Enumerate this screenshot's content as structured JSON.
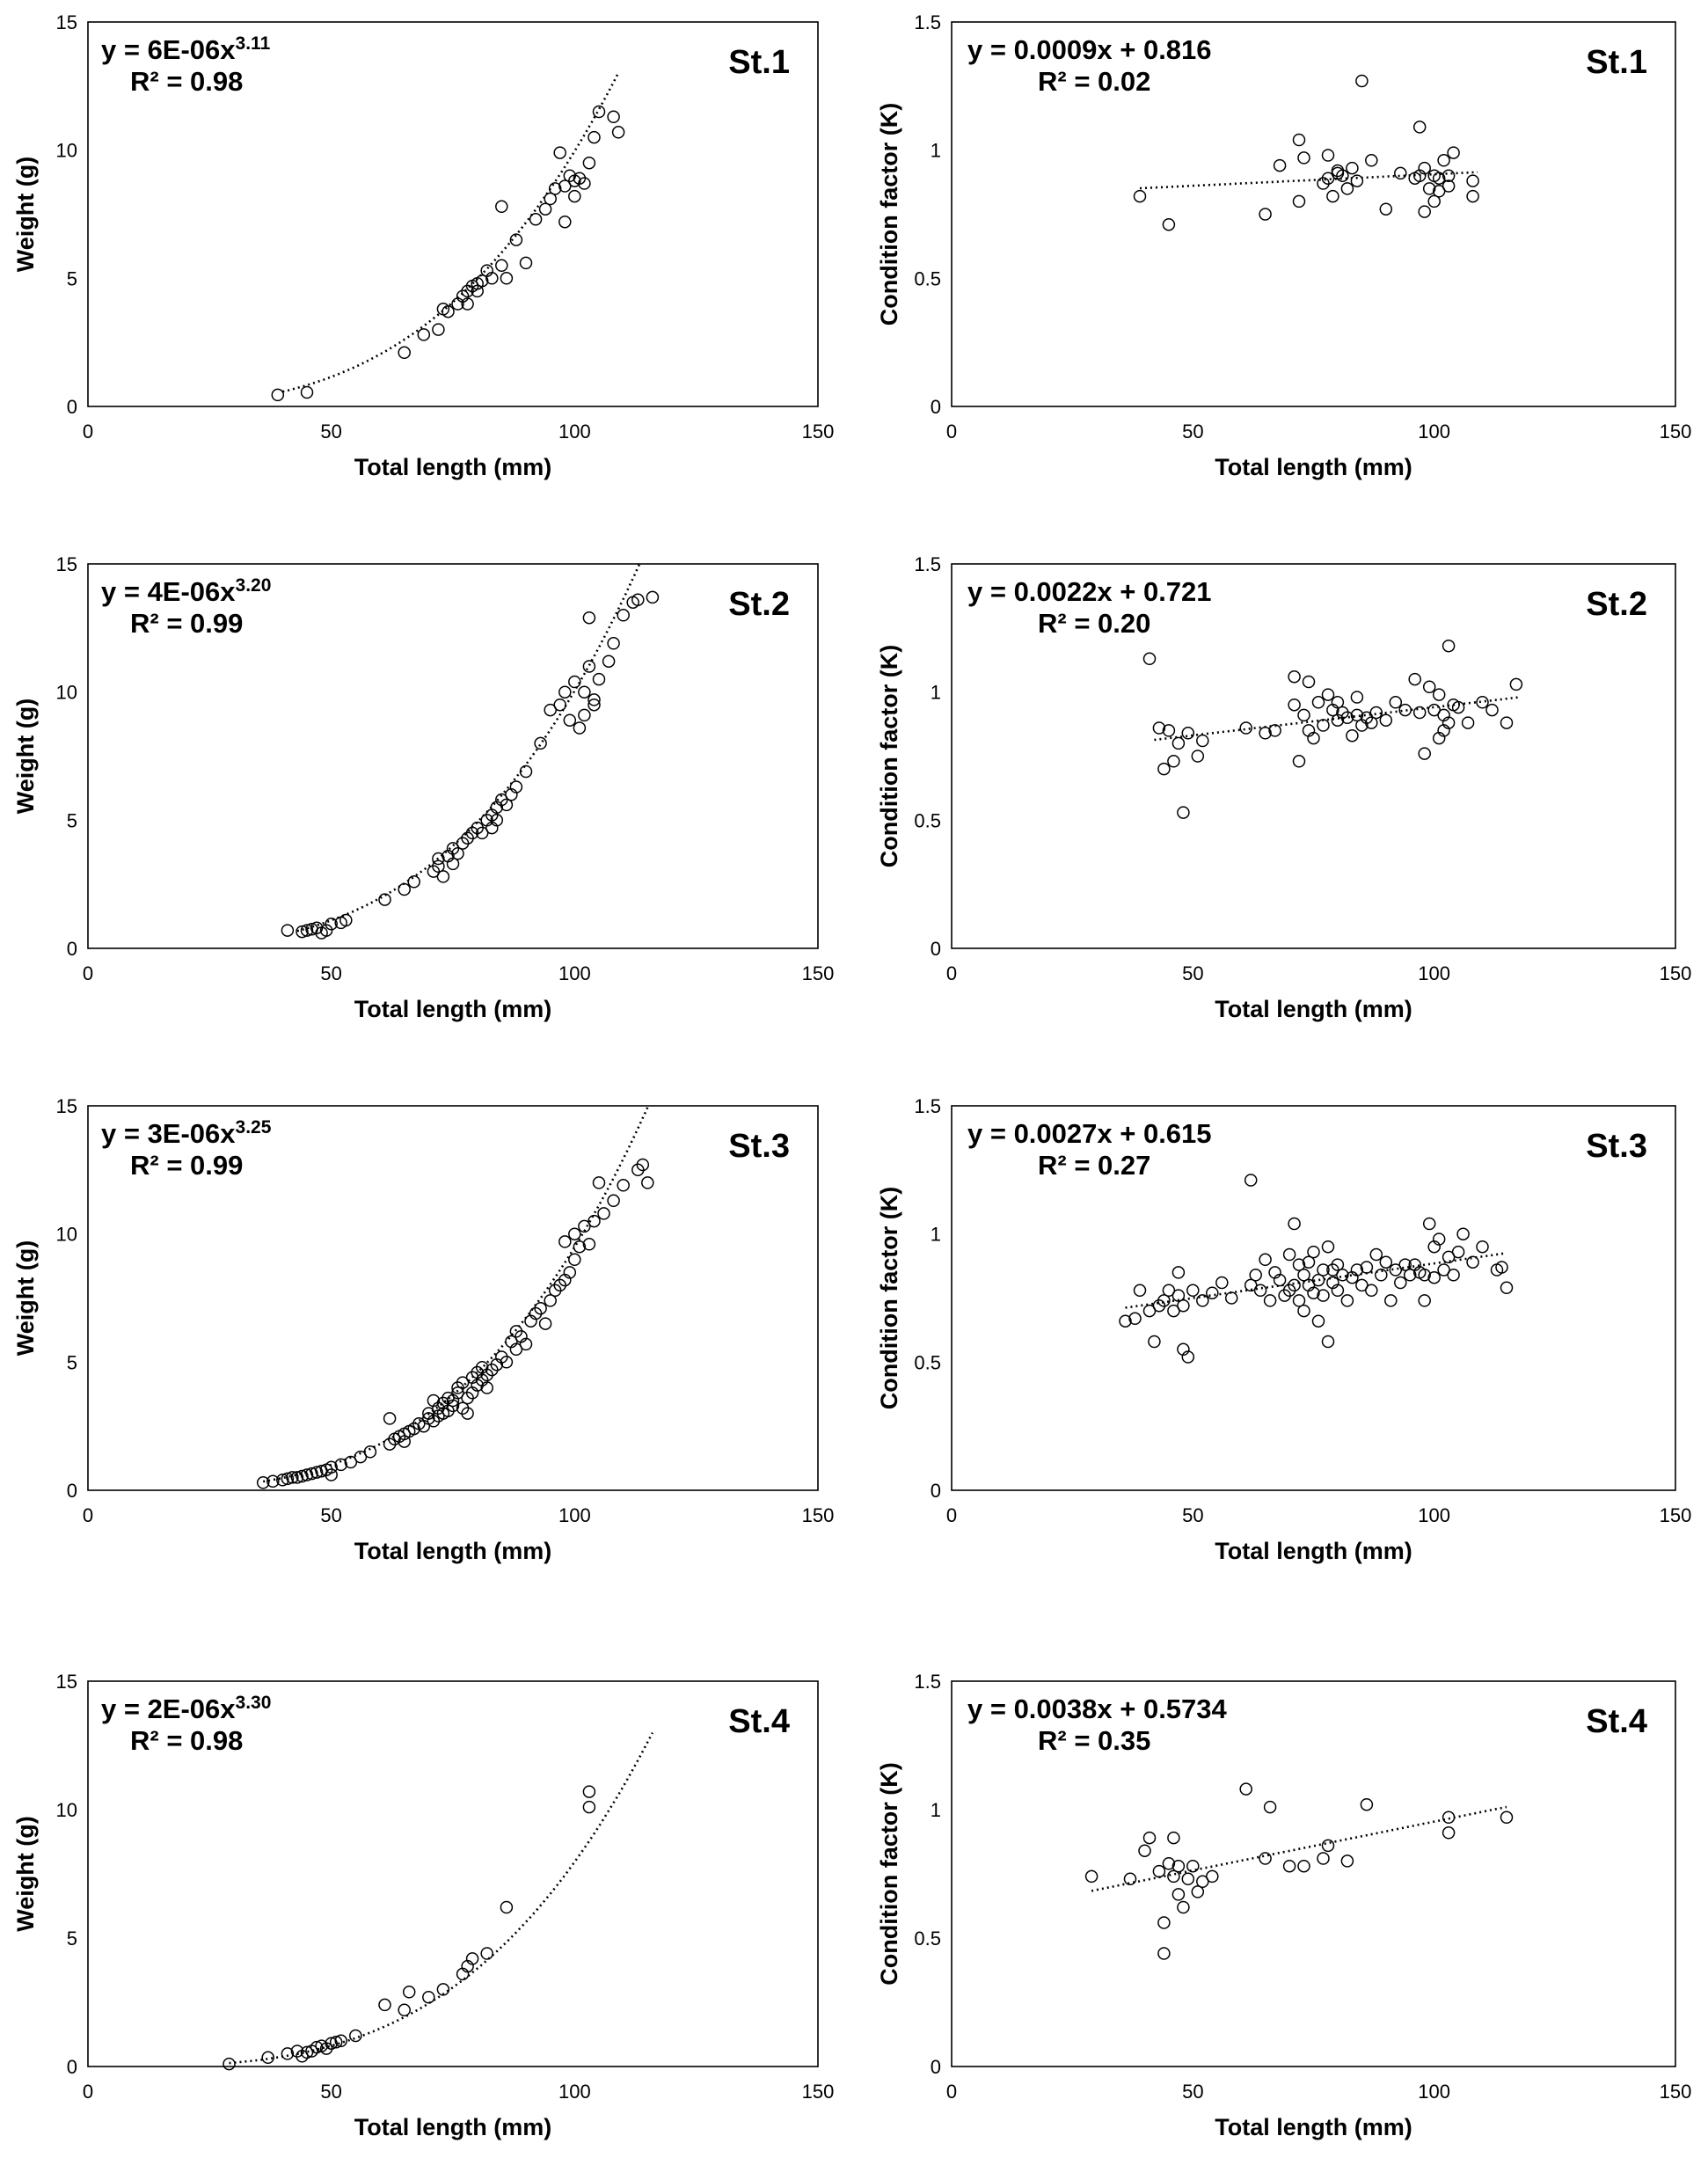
{
  "chart_data": [
    {
      "id": "w-st1",
      "type": "scatter",
      "station": "St.1",
      "xlabel": "Total length (mm)",
      "ylabel": "Weight (g)",
      "xlim": [
        0,
        150
      ],
      "ylim": [
        0,
        15
      ],
      "xticks": [
        "0",
        "50",
        "100",
        "150"
      ],
      "yticks": [
        "0",
        "5",
        "10",
        "15"
      ],
      "equation": {
        "line1": "y = 6E-06x",
        "exp": "3.11",
        "line2": "R² = 0.98"
      },
      "trendline": {
        "kind": "power",
        "a": 6e-06,
        "b": 3.11,
        "x_range": [
          40,
          109
        ]
      },
      "x": [
        39,
        45,
        65,
        69,
        72,
        73,
        74,
        76,
        77,
        78,
        78,
        79,
        80,
        80,
        81,
        82,
        83,
        85,
        85,
        86,
        88,
        90,
        92,
        94,
        95,
        96,
        97,
        98,
        98,
        99,
        100,
        100,
        101,
        102,
        103,
        104,
        105,
        108,
        109
      ],
      "y": [
        0.45,
        0.55,
        2.1,
        2.8,
        3.0,
        3.8,
        3.7,
        4.0,
        4.3,
        4.5,
        4.0,
        4.7,
        4.5,
        4.8,
        4.9,
        5.3,
        5.0,
        5.5,
        7.8,
        5.0,
        6.5,
        5.6,
        7.3,
        7.7,
        8.1,
        8.5,
        9.9,
        7.2,
        8.6,
        9.0,
        8.8,
        8.2,
        8.9,
        8.7,
        9.5,
        10.5,
        11.5,
        11.3,
        10.7
      ]
    },
    {
      "id": "k-st1",
      "type": "scatter",
      "station": "St.1",
      "xlabel": "Total length (mm)",
      "ylabel": "Condition factor (K)",
      "xlim": [
        0,
        150
      ],
      "ylim": [
        0,
        1.5
      ],
      "xticks": [
        "0",
        "50",
        "100",
        "150"
      ],
      "yticks": [
        "0",
        "0.5",
        "1",
        "1.5"
      ],
      "equation": {
        "line1": "y = 0.0009x + 0.816",
        "line2": "R² = 0.02"
      },
      "trendline": {
        "kind": "linear",
        "m": 0.0009,
        "c": 0.816,
        "x_range": [
          39,
          109
        ]
      },
      "x": [
        39,
        45,
        65,
        68,
        72,
        72,
        73,
        77,
        78,
        78,
        79,
        80,
        80,
        81,
        82,
        83,
        84,
        85,
        87,
        90,
        93,
        96,
        97,
        97,
        98,
        98,
        99,
        100,
        100,
        101,
        101,
        102,
        103,
        103,
        104,
        108,
        108
      ],
      "y": [
        0.82,
        0.71,
        0.75,
        0.94,
        0.8,
        1.04,
        0.97,
        0.87,
        0.98,
        0.89,
        0.82,
        0.91,
        0.92,
        0.9,
        0.85,
        0.93,
        0.88,
        1.27,
        0.96,
        0.77,
        0.91,
        0.89,
        0.9,
        1.09,
        0.76,
        0.93,
        0.85,
        0.9,
        0.8,
        0.89,
        0.84,
        0.96,
        0.86,
        0.9,
        0.99,
        0.82,
        0.88
      ]
    },
    {
      "id": "w-st2",
      "type": "scatter",
      "station": "St.2",
      "xlabel": "Total length (mm)",
      "ylabel": "Weight (g)",
      "xlim": [
        0,
        150
      ],
      "ylim": [
        0,
        15
      ],
      "xticks": [
        "0",
        "50",
        "100",
        "150"
      ],
      "yticks": [
        "0",
        "5",
        "10",
        "15"
      ],
      "equation": {
        "line1": "y = 4E-06x",
        "exp": "3.20",
        "line2": "R² = 0.99"
      },
      "trendline": {
        "kind": "power",
        "a": 4e-06,
        "b": 3.2,
        "x_range": [
          43,
          116
        ]
      },
      "x": [
        41,
        44,
        45,
        46,
        47,
        48,
        49,
        50,
        52,
        53,
        61,
        65,
        67,
        71,
        72,
        72,
        73,
        74,
        75,
        75,
        76,
        77,
        78,
        79,
        80,
        81,
        82,
        83,
        83,
        84,
        84,
        85,
        86,
        87,
        88,
        90,
        93,
        95,
        97,
        98,
        99,
        100,
        101,
        102,
        102,
        103,
        103,
        104,
        104,
        105,
        107,
        108,
        110,
        112,
        113,
        116
      ],
      "y": [
        0.7,
        0.65,
        0.7,
        0.75,
        0.8,
        0.6,
        0.7,
        0.95,
        1.0,
        1.1,
        1.9,
        2.3,
        2.6,
        3.0,
        3.2,
        3.5,
        2.8,
        3.6,
        3.3,
        3.9,
        3.7,
        4.1,
        4.3,
        4.5,
        4.7,
        4.5,
        5.0,
        5.2,
        4.7,
        5.5,
        5.0,
        5.8,
        5.6,
        6.0,
        6.3,
        6.9,
        8.0,
        9.3,
        9.5,
        10.0,
        8.9,
        10.4,
        8.6,
        9.1,
        10.0,
        12.9,
        11.0,
        9.5,
        9.7,
        10.5,
        11.2,
        11.9,
        13.0,
        13.5,
        13.6,
        13.7
      ]
    },
    {
      "id": "k-st2",
      "type": "scatter",
      "station": "St.2",
      "xlabel": "Total length (mm)",
      "ylabel": "Condition factor (K)",
      "xlim": [
        0,
        150
      ],
      "ylim": [
        0,
        1.5
      ],
      "xticks": [
        "0",
        "50",
        "100",
        "150"
      ],
      "yticks": [
        "0",
        "0.5",
        "1",
        "1.5"
      ],
      "equation": {
        "line1": "y = 0.0022x + 0.721",
        "line2": "R² = 0.20"
      },
      "trendline": {
        "kind": "linear",
        "m": 0.0022,
        "c": 0.721,
        "x_range": [
          42,
          118
        ]
      },
      "x": [
        41,
        43,
        44,
        45,
        46,
        47,
        48,
        49,
        51,
        52,
        61,
        65,
        67,
        71,
        71,
        72,
        73,
        74,
        74,
        75,
        76,
        77,
        78,
        79,
        80,
        80,
        81,
        82,
        83,
        84,
        84,
        85,
        86,
        87,
        88,
        90,
        92,
        94,
        96,
        97,
        98,
        99,
        100,
        101,
        101,
        102,
        102,
        103,
        103,
        104,
        105,
        107,
        110,
        112,
        115,
        117
      ],
      "y": [
        1.13,
        0.86,
        0.7,
        0.85,
        0.73,
        0.8,
        0.53,
        0.84,
        0.75,
        0.81,
        0.86,
        0.84,
        0.85,
        0.95,
        1.06,
        0.73,
        0.91,
        1.04,
        0.85,
        0.82,
        0.96,
        0.87,
        0.99,
        0.93,
        0.89,
        0.96,
        0.92,
        0.9,
        0.83,
        0.91,
        0.98,
        0.87,
        0.9,
        0.88,
        0.92,
        0.89,
        0.96,
        0.93,
        1.05,
        0.92,
        0.76,
        1.02,
        0.93,
        0.99,
        0.82,
        0.85,
        0.91,
        1.18,
        0.88,
        0.95,
        0.94,
        0.88,
        0.96,
        0.93,
        0.88,
        1.03
      ]
    },
    {
      "id": "w-st3",
      "type": "scatter",
      "station": "St.3",
      "xlabel": "Total length (mm)",
      "ylabel": "Weight (g)",
      "xlim": [
        0,
        150
      ],
      "ylim": [
        0,
        15
      ],
      "xticks": [
        "0",
        "50",
        "100",
        "150"
      ],
      "yticks": [
        "0",
        "5",
        "10",
        "15"
      ],
      "equation": {
        "line1": "y = 3E-06x",
        "exp": "3.25",
        "line2": "R² = 0.99"
      },
      "trendline": {
        "kind": "power",
        "a": 3e-06,
        "b": 3.25,
        "x_range": [
          36,
          115
        ]
      },
      "x": [
        36,
        38,
        40,
        41,
        42,
        43,
        44,
        45,
        46,
        47,
        48,
        49,
        50,
        50,
        52,
        54,
        56,
        58,
        62,
        62,
        63,
        64,
        65,
        65,
        66,
        67,
        68,
        69,
        70,
        70,
        71,
        71,
        72,
        72,
        73,
        73,
        74,
        74,
        75,
        75,
        76,
        76,
        77,
        77,
        78,
        78,
        79,
        79,
        80,
        80,
        81,
        81,
        82,
        82,
        83,
        84,
        85,
        86,
        87,
        88,
        88,
        89,
        90,
        91,
        92,
        93,
        94,
        95,
        96,
        97,
        98,
        98,
        99,
        100,
        100,
        101,
        102,
        103,
        104,
        105,
        106,
        108,
        110,
        113,
        114,
        115
      ],
      "y": [
        0.3,
        0.35,
        0.4,
        0.45,
        0.5,
        0.5,
        0.55,
        0.6,
        0.65,
        0.7,
        0.75,
        0.8,
        0.6,
        0.9,
        1.0,
        1.1,
        1.3,
        1.5,
        2.8,
        1.8,
        2.0,
        2.1,
        2.2,
        1.9,
        2.3,
        2.4,
        2.6,
        2.5,
        2.8,
        3.0,
        3.5,
        2.7,
        3.2,
        2.9,
        3.4,
        3.0,
        3.6,
        3.1,
        3.3,
        3.5,
        3.8,
        4.0,
        3.2,
        4.2,
        3.6,
        3.0,
        4.4,
        3.8,
        4.6,
        4.1,
        4.3,
        4.8,
        4.0,
        4.5,
        4.7,
        4.9,
        5.2,
        5.0,
        5.8,
        6.2,
        5.5,
        6.0,
        5.7,
        6.6,
        6.9,
        7.1,
        6.5,
        7.4,
        7.8,
        8.0,
        9.7,
        8.2,
        8.5,
        9.0,
        10.0,
        9.5,
        10.3,
        9.6,
        10.5,
        12.0,
        10.8,
        11.3,
        11.9,
        12.5,
        12.7,
        12.0
      ]
    },
    {
      "id": "k-st3",
      "type": "scatter",
      "station": "St.3",
      "xlabel": "Total length (mm)",
      "ylabel": "Condition factor (K)",
      "xlim": [
        0,
        150
      ],
      "ylim": [
        0,
        1.5
      ],
      "xticks": [
        "0",
        "50",
        "100",
        "150"
      ],
      "yticks": [
        "0",
        "0.5",
        "1",
        "1.5"
      ],
      "equation": {
        "line1": "y = 0.0027x + 0.615",
        "line2": "R² = 0.27"
      },
      "trendline": {
        "kind": "linear",
        "m": 0.0027,
        "c": 0.615,
        "x_range": [
          36,
          115
        ]
      },
      "x": [
        36,
        38,
        39,
        41,
        42,
        43,
        44,
        45,
        46,
        47,
        47,
        48,
        48,
        49,
        50,
        52,
        54,
        56,
        58,
        62,
        62,
        63,
        64,
        65,
        66,
        67,
        68,
        69,
        70,
        70,
        71,
        71,
        72,
        72,
        73,
        73,
        74,
        74,
        75,
        75,
        76,
        76,
        77,
        77,
        78,
        78,
        79,
        79,
        80,
        80,
        81,
        82,
        83,
        84,
        85,
        86,
        87,
        88,
        89,
        90,
        91,
        92,
        93,
        94,
        95,
        96,
        97,
        98,
        98,
        99,
        100,
        100,
        101,
        102,
        103,
        104,
        105,
        106,
        108,
        110,
        113,
        114,
        115
      ],
      "y": [
        0.66,
        0.67,
        0.78,
        0.7,
        0.58,
        0.72,
        0.74,
        0.78,
        0.7,
        0.76,
        0.85,
        0.55,
        0.72,
        0.52,
        0.78,
        0.74,
        0.77,
        0.81,
        0.75,
        1.21,
        0.8,
        0.84,
        0.78,
        0.9,
        0.74,
        0.85,
        0.82,
        0.76,
        0.78,
        0.92,
        1.04,
        0.8,
        0.74,
        0.88,
        0.84,
        0.7,
        0.8,
        0.89,
        0.77,
        0.93,
        0.82,
        0.66,
        0.86,
        0.76,
        0.58,
        0.95,
        0.81,
        0.86,
        0.78,
        0.88,
        0.84,
        0.74,
        0.83,
        0.86,
        0.8,
        0.87,
        0.78,
        0.92,
        0.84,
        0.89,
        0.74,
        0.86,
        0.81,
        0.88,
        0.84,
        0.88,
        0.85,
        0.74,
        0.84,
        1.04,
        0.83,
        0.95,
        0.98,
        0.86,
        0.91,
        0.84,
        0.93,
        1.0,
        0.89,
        0.95,
        0.86,
        0.87,
        0.79
      ]
    },
    {
      "id": "w-st4",
      "type": "scatter",
      "station": "St.4",
      "xlabel": "Total length (mm)",
      "ylabel": "Weight (g)",
      "xlim": [
        0,
        150
      ],
      "ylim": [
        0,
        15
      ],
      "xticks": [
        "0",
        "50",
        "100",
        "150"
      ],
      "yticks": [
        "0",
        "5",
        "10",
        "15"
      ],
      "equation": {
        "line1": "y = 2E-06x",
        "exp": "3.30",
        "line2": "R² = 0.98"
      },
      "trendline": {
        "kind": "power",
        "a": 2e-06,
        "b": 3.3,
        "x_range": [
          29,
          116
        ]
      },
      "x": [
        29,
        37,
        41,
        43,
        44,
        45,
        46,
        47,
        48,
        49,
        50,
        51,
        52,
        55,
        61,
        65,
        66,
        70,
        73,
        77,
        78,
        79,
        82,
        86,
        103,
        103
      ],
      "y": [
        0.1,
        0.35,
        0.5,
        0.6,
        0.4,
        0.55,
        0.6,
        0.75,
        0.8,
        0.7,
        0.9,
        0.95,
        1.0,
        1.2,
        2.4,
        2.2,
        2.9,
        2.7,
        3.0,
        3.6,
        3.9,
        4.2,
        4.4,
        6.2,
        10.1,
        10.7
      ]
    },
    {
      "id": "k-st4",
      "type": "scatter",
      "station": "St.4",
      "xlabel": "Total length (mm)",
      "ylabel": "Condition factor (K)",
      "xlim": [
        0,
        150
      ],
      "ylim": [
        0,
        1.5
      ],
      "xticks": [
        "0",
        "50",
        "100",
        "150"
      ],
      "yticks": [
        "0",
        "0.5",
        "1",
        "1.5"
      ],
      "equation": {
        "line1": "y = 0.0038x + 0.5734",
        "line2": "R² = 0.35"
      },
      "trendline": {
        "kind": "linear",
        "m": 0.0038,
        "c": 0.5734,
        "x_range": [
          29,
          115
        ]
      },
      "x": [
        29,
        37,
        40,
        41,
        43,
        44,
        44,
        45,
        46,
        46,
        47,
        47,
        48,
        49,
        50,
        51,
        52,
        54,
        61,
        65,
        66,
        70,
        73,
        77,
        78,
        82,
        86,
        103,
        103,
        115
      ],
      "y": [
        0.74,
        0.73,
        0.84,
        0.89,
        0.76,
        0.44,
        0.56,
        0.79,
        0.89,
        0.74,
        0.67,
        0.78,
        0.62,
        0.73,
        0.78,
        0.68,
        0.72,
        0.74,
        1.08,
        0.81,
        1.01,
        0.78,
        0.78,
        0.81,
        0.86,
        0.8,
        1.02,
        0.97,
        0.91,
        0.97
      ]
    }
  ]
}
